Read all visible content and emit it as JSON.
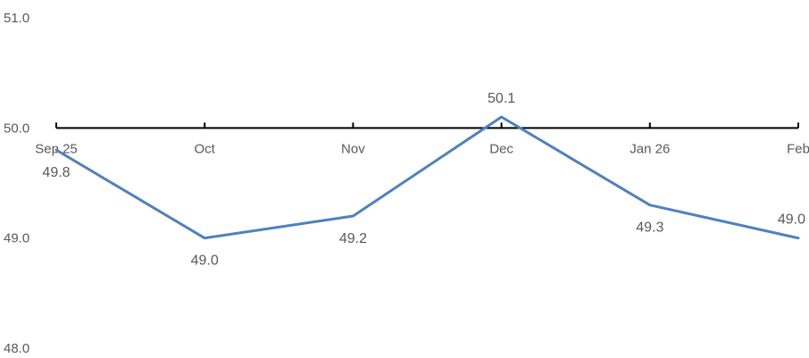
{
  "chart_data": {
    "type": "line",
    "title": "",
    "xlabel": "",
    "ylabel": "",
    "categories": [
      "Sep 25",
      "Oct",
      "Nov",
      "Dec",
      "Jan 26",
      "Feb"
    ],
    "series": [
      {
        "values": [
          49.8,
          49.0,
          49.2,
          50.1,
          49.3,
          49.0
        ],
        "color": "#4f81bd"
      }
    ],
    "data_labels": [
      "49.8",
      "49.0",
      "49.2",
      "50.1",
      "49.3",
      "49.0"
    ],
    "ylim": [
      48.0,
      51.0
    ],
    "y_ticks": [
      "51.0",
      "50.0",
      "49.0",
      "48.0"
    ],
    "x_axis_crosses_at": 50.0,
    "grid": false,
    "legend": "none"
  }
}
